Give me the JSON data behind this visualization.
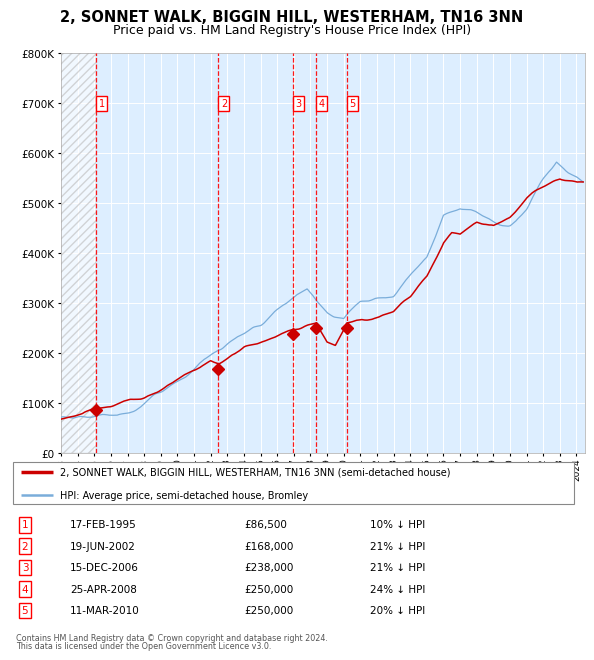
{
  "title": "2, SONNET WALK, BIGGIN HILL, WESTERHAM, TN16 3NN",
  "subtitle": "Price paid vs. HM Land Registry's House Price Index (HPI)",
  "footer1": "Contains HM Land Registry data © Crown copyright and database right 2024.",
  "footer2": "This data is licensed under the Open Government Licence v3.0.",
  "legend_red": "2, SONNET WALK, BIGGIN HILL, WESTERHAM, TN16 3NN (semi-detached house)",
  "legend_blue": "HPI: Average price, semi-detached house, Bromley",
  "transactions": [
    {
      "num": 1,
      "date": "17-FEB-1995",
      "price": 86500,
      "pct": "10% ↓ HPI",
      "year": 1995.12
    },
    {
      "num": 2,
      "date": "19-JUN-2002",
      "price": 168000,
      "pct": "21% ↓ HPI",
      "year": 2002.46
    },
    {
      "num": 3,
      "date": "15-DEC-2006",
      "price": 238000,
      "pct": "21% ↓ HPI",
      "year": 2006.96
    },
    {
      "num": 4,
      "date": "25-APR-2008",
      "price": 250000,
      "pct": "24% ↓ HPI",
      "year": 2008.32
    },
    {
      "num": 5,
      "date": "11-MAR-2010",
      "price": 250000,
      "pct": "20% ↓ HPI",
      "year": 2010.19
    }
  ],
  "hatch_x_start": 1993.0,
  "hatch_x_end": 1995.12,
  "ylim": [
    0,
    800000
  ],
  "xlim_start": 1993.0,
  "xlim_end": 2024.5,
  "red_color": "#cc0000",
  "blue_color": "#7aadda",
  "bg_color": "#ddeeff",
  "plot_bg": "#ddeeff",
  "grid_color": "#ffffff",
  "title_fontsize": 10.5,
  "subtitle_fontsize": 9
}
